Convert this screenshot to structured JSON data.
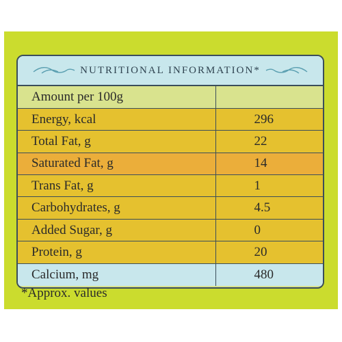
{
  "header": {
    "title": "NUTRITIONAL INFORMATION*"
  },
  "colors": {
    "panel": "#cbdc2e",
    "header": "#c8e7ec",
    "row_green": "#d9e38e",
    "row_yellow": "#e5c12f",
    "row_orange": "#ebae3a",
    "row_blue": "#c8e7ec",
    "border": "#3a4d5a"
  },
  "rows": [
    {
      "label": "Amount per 100g",
      "value": "",
      "color": "row_green"
    },
    {
      "label": "Energy, kcal",
      "value": "296",
      "color": "row_yellow"
    },
    {
      "label": "Total Fat, g",
      "value": "22",
      "color": "row_yellow"
    },
    {
      "label": "Saturated Fat, g",
      "value": "14",
      "color": "row_orange"
    },
    {
      "label": "Trans Fat, g",
      "value": "1",
      "color": "row_yellow"
    },
    {
      "label": "Carbohydrates, g",
      "value": "4.5",
      "color": "row_yellow"
    },
    {
      "label": "Added Sugar, g",
      "value": "0",
      "color": "row_yellow"
    },
    {
      "label": "Protein, g",
      "value": "20",
      "color": "row_yellow"
    },
    {
      "label": "Calcium, mg",
      "value": "480",
      "color": "row_blue"
    }
  ],
  "footnote": "*Approx. values"
}
